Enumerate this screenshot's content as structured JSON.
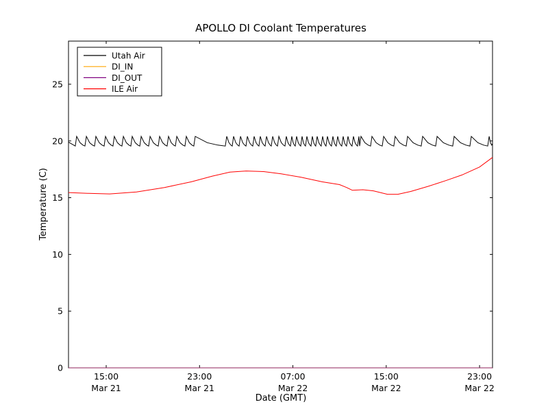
{
  "figure": {
    "title": "APOLLO DI Coolant Temperatures",
    "xlabel": "Date (GMT)",
    "ylabel": "Temperature (C)"
  },
  "legend": {
    "entries": [
      {
        "label": "Utah Air",
        "color": "#000000"
      },
      {
        "label": "DI_IN",
        "color": "#ffa500"
      },
      {
        "label": "DI_OUT",
        "color": "#800080"
      },
      {
        "label": "ILE Air",
        "color": "#ff0000"
      }
    ]
  },
  "chart_data": {
    "type": "line",
    "title": "APOLLO DI Coolant Temperatures",
    "xlabel": "Date (GMT)",
    "ylabel": "Temperature (C)",
    "x_unit": "hours since Mar 21 00:00 GMT",
    "x_range": [
      11.77,
      48.11
    ],
    "y_range": [
      0,
      28.8
    ],
    "grid": false,
    "legend_position": "upper left",
    "x_ticks": [
      {
        "value": 15,
        "time": "15:00",
        "date": "Mar 21"
      },
      {
        "value": 23,
        "time": "23:00",
        "date": "Mar 21"
      },
      {
        "value": 31,
        "time": "07:00",
        "date": "Mar 22"
      },
      {
        "value": 39,
        "time": "15:00",
        "date": "Mar 22"
      },
      {
        "value": 47,
        "time": "23:00",
        "date": "Mar 22"
      }
    ],
    "y_ticks": [
      0,
      5,
      10,
      15,
      20,
      25
    ],
    "series": [
      {
        "name": "Utah Air",
        "color": "#000000",
        "style": "sawtooth",
        "trough_temp": 19.55,
        "peak_temp": 20.4,
        "start_hour": 11.77,
        "end_hour": 48.11,
        "start_temp": 19.9,
        "peaks_hours": [
          12.47,
          13.3,
          14.12,
          14.94,
          15.7,
          16.47,
          17.23,
          18.0,
          18.76,
          19.58,
          20.34,
          21.05,
          21.87,
          22.63,
          25.33,
          25.92,
          26.51,
          27.1,
          27.68,
          28.21,
          28.74,
          29.27,
          29.8,
          30.44,
          30.91,
          31.32,
          31.79,
          32.2,
          32.67,
          33.08,
          33.55,
          33.96,
          34.43,
          34.84,
          35.31,
          35.72,
          36.19,
          36.66,
          36.84,
          37.78,
          38.78,
          39.77,
          40.83,
          42.12,
          43.36,
          44.82,
          46.29,
          47.82
        ]
      },
      {
        "name": "DI_IN",
        "color": "#ffa500",
        "style": "constant",
        "value": 0
      },
      {
        "name": "DI_OUT",
        "color": "#800080",
        "style": "constant",
        "value": 0
      },
      {
        "name": "ILE Air",
        "color": "#ff0000",
        "style": "points",
        "points": [
          [
            11.77,
            15.45
          ],
          [
            13.5,
            15.38
          ],
          [
            15.3,
            15.33
          ],
          [
            17.6,
            15.5
          ],
          [
            20.0,
            15.9
          ],
          [
            22.3,
            16.4
          ],
          [
            24.1,
            16.9
          ],
          [
            25.6,
            17.25
          ],
          [
            27.0,
            17.35
          ],
          [
            28.5,
            17.3
          ],
          [
            30.0,
            17.1
          ],
          [
            31.7,
            16.8
          ],
          [
            33.5,
            16.4
          ],
          [
            35.0,
            16.15
          ],
          [
            35.6,
            15.9
          ],
          [
            36.1,
            15.65
          ],
          [
            37.0,
            15.7
          ],
          [
            37.9,
            15.6
          ],
          [
            39.1,
            15.3
          ],
          [
            40.0,
            15.3
          ],
          [
            41.1,
            15.55
          ],
          [
            42.6,
            16.0
          ],
          [
            44.1,
            16.5
          ],
          [
            45.5,
            17.0
          ],
          [
            47.0,
            17.7
          ],
          [
            48.11,
            18.55
          ]
        ]
      }
    ]
  }
}
